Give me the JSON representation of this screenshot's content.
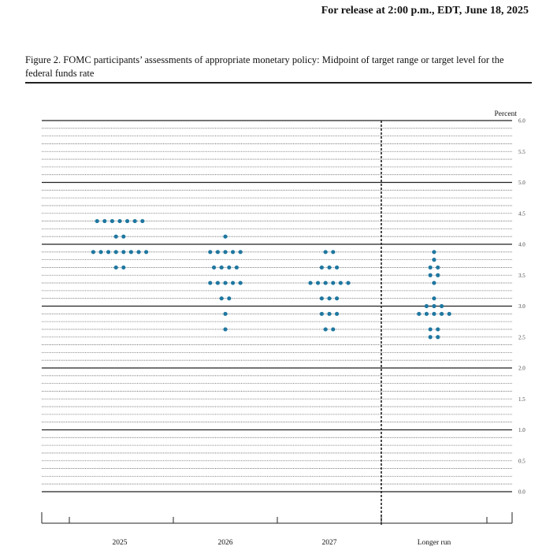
{
  "header": {
    "release_text": "For release at 2:00 p.m., EDT, June 18, 2025"
  },
  "figure": {
    "title": "Figure 2.  FOMC participants’ assessments of appropriate monetary policy: Midpoint of target range or target level for the federal funds rate"
  },
  "colors": {
    "dot": "#1f77a0",
    "line": "#222222"
  },
  "chart_data": {
    "type": "scatter",
    "title": "",
    "ylabel": "Percent",
    "ylim": [
      0,
      6
    ],
    "y_ticks": [
      "0.0",
      "0.5",
      "1.0",
      "1.5",
      "2.0",
      "2.5",
      "3.0",
      "3.5",
      "4.0",
      "4.5",
      "5.0",
      "5.5",
      "6.0"
    ],
    "categories": [
      "2025",
      "2026",
      "2027",
      "Longer run"
    ],
    "grid": true,
    "divider_before": "Longer run",
    "series": [
      {
        "category": "2025",
        "points": [
          {
            "y": 4.375,
            "count": 7
          },
          {
            "y": 4.125,
            "count": 2
          },
          {
            "y": 3.875,
            "count": 8
          },
          {
            "y": 3.625,
            "count": 2
          }
        ]
      },
      {
        "category": "2026",
        "points": [
          {
            "y": 4.125,
            "count": 1
          },
          {
            "y": 3.875,
            "count": 5
          },
          {
            "y": 3.625,
            "count": 4
          },
          {
            "y": 3.375,
            "count": 5
          },
          {
            "y": 3.125,
            "count": 2
          },
          {
            "y": 2.875,
            "count": 1
          },
          {
            "y": 2.625,
            "count": 1
          }
        ]
      },
      {
        "category": "2027",
        "points": [
          {
            "y": 3.875,
            "count": 2
          },
          {
            "y": 3.625,
            "count": 3
          },
          {
            "y": 3.375,
            "count": 6
          },
          {
            "y": 3.125,
            "count": 3
          },
          {
            "y": 2.875,
            "count": 3
          },
          {
            "y": 2.625,
            "count": 2
          }
        ]
      },
      {
        "category": "Longer run",
        "points": [
          {
            "y": 3.875,
            "count": 1
          },
          {
            "y": 3.75,
            "count": 1
          },
          {
            "y": 3.625,
            "count": 2
          },
          {
            "y": 3.5,
            "count": 2
          },
          {
            "y": 3.375,
            "count": 1
          },
          {
            "y": 3.125,
            "count": 1
          },
          {
            "y": 3.0,
            "count": 3
          },
          {
            "y": 2.875,
            "count": 5
          },
          {
            "y": 2.625,
            "count": 2
          },
          {
            "y": 2.5,
            "count": 2
          }
        ]
      }
    ]
  }
}
